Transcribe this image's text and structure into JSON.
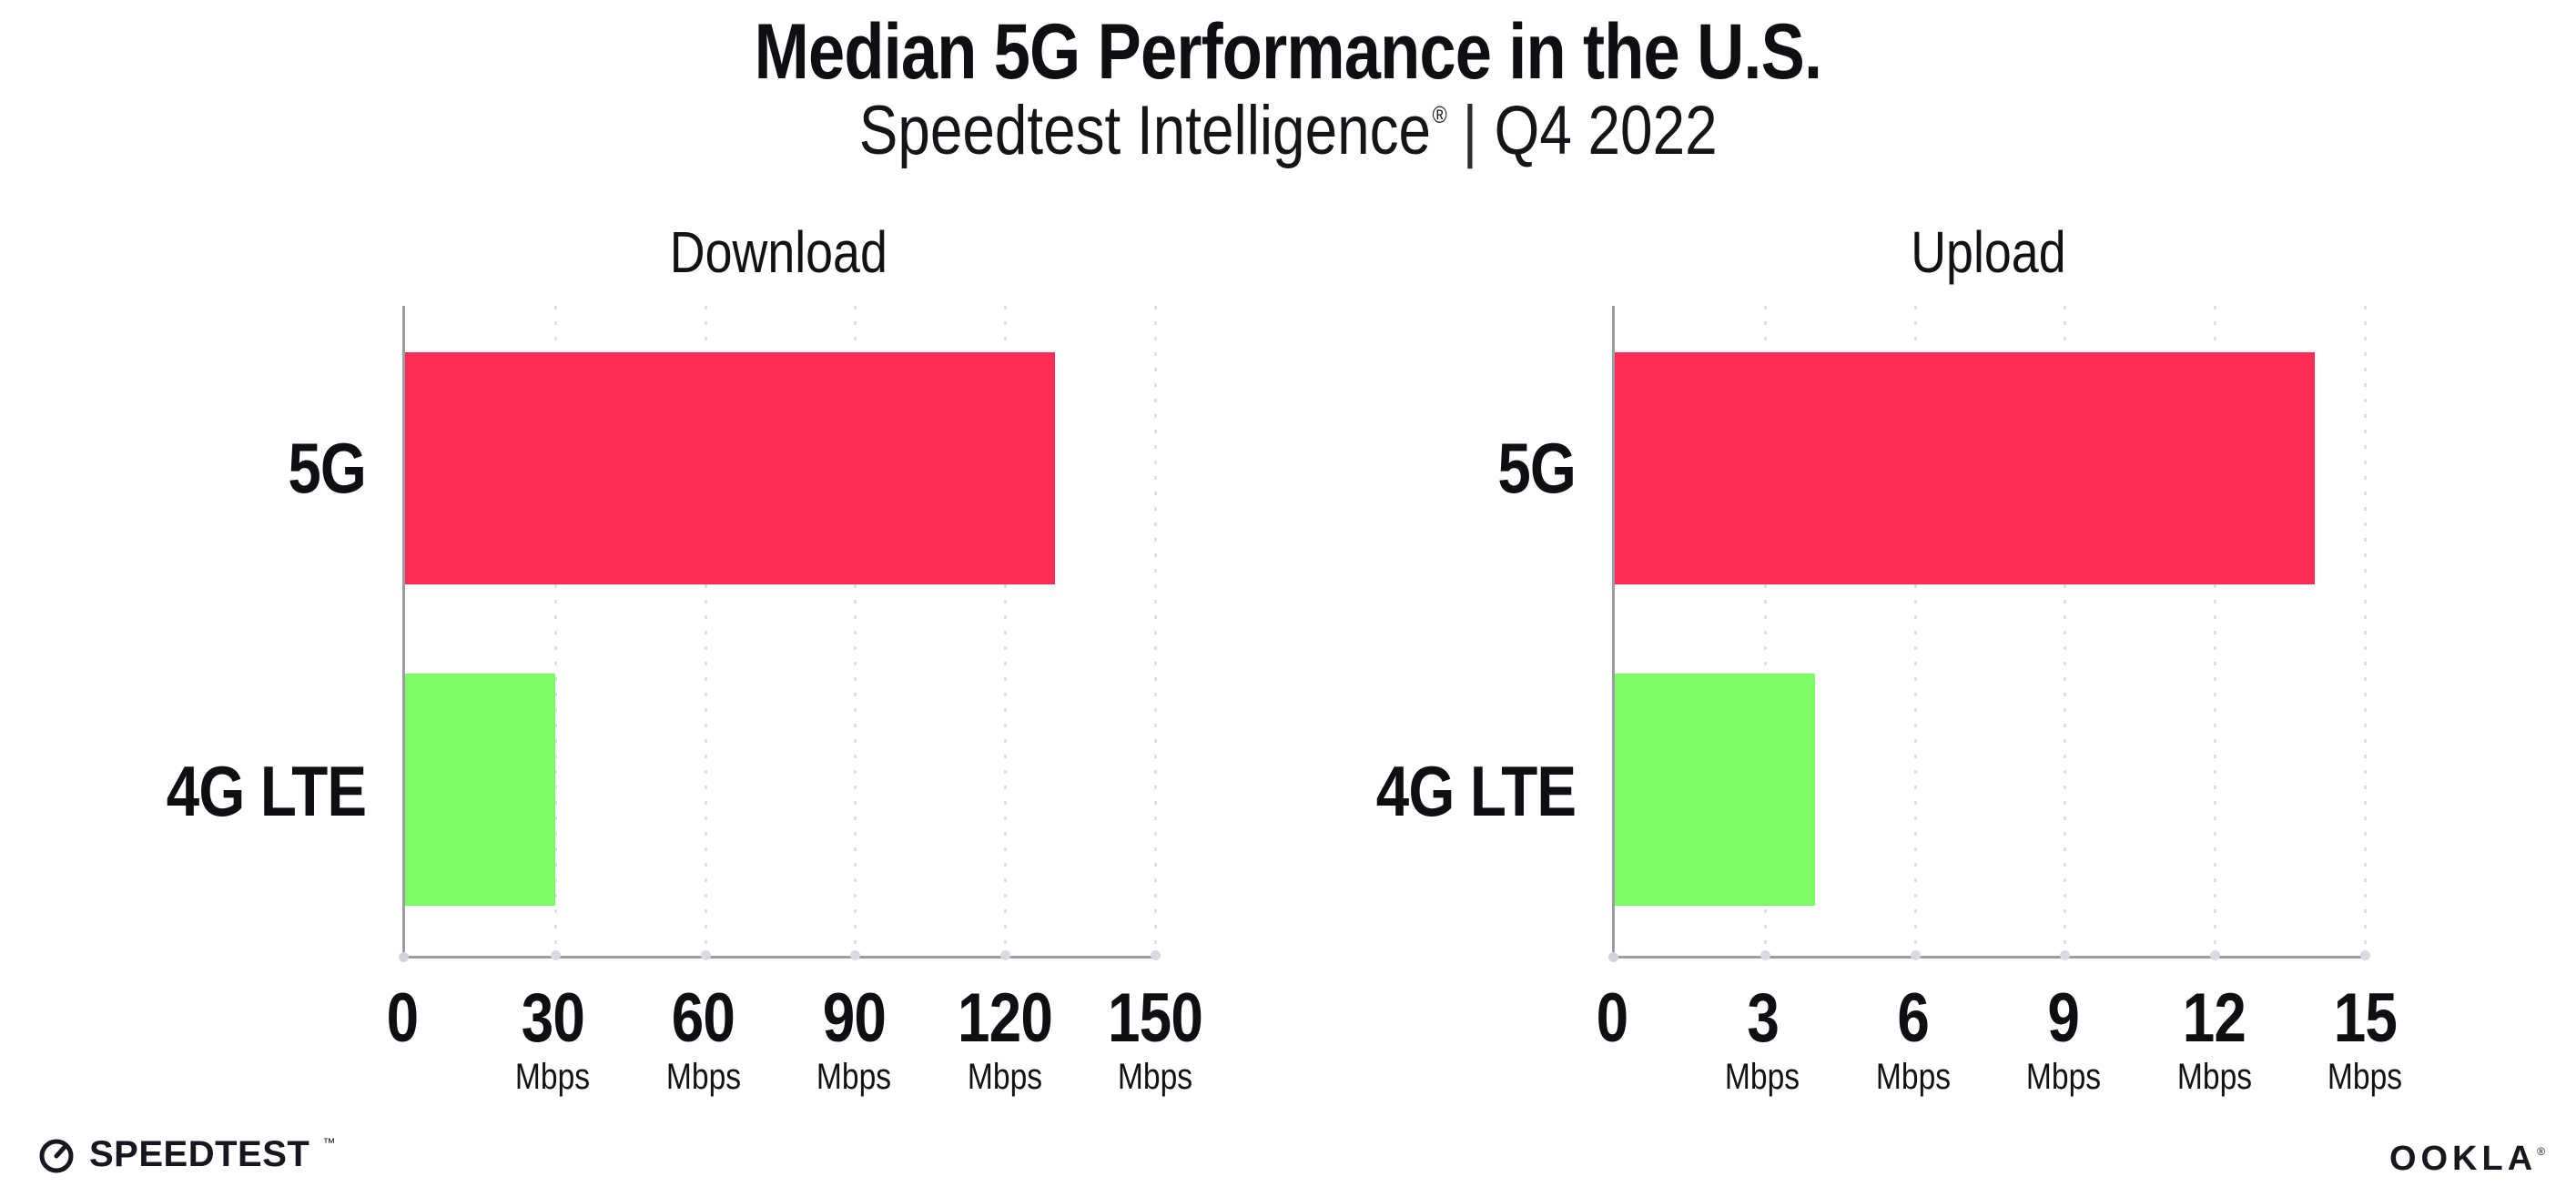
{
  "header": {
    "title": "Median 5G Performance in the U.S.",
    "subtitle": {
      "brand": "Speedtest Intelligence",
      "registered_mark": "®",
      "divider": "|",
      "period": "Q4 2022"
    }
  },
  "chart_data": [
    {
      "type": "bar",
      "orientation": "horizontal",
      "title": "Download",
      "categories": [
        "5G",
        "4G LTE"
      ],
      "values": [
        130,
        30
      ],
      "unit": "Mbps",
      "xlim": [
        0,
        150
      ],
      "xticks": [
        0,
        30,
        60,
        90,
        120,
        150
      ],
      "xtick_unit": "Mbps",
      "series_colors": [
        "#ff2d55",
        "#7dfc64"
      ],
      "grid": "dotted-vertical",
      "legend": "none"
    },
    {
      "type": "bar",
      "orientation": "horizontal",
      "title": "Upload",
      "categories": [
        "5G",
        "4G LTE"
      ],
      "values": [
        14,
        4
      ],
      "unit": "Mbps",
      "xlim": [
        0,
        15
      ],
      "xticks": [
        0,
        3,
        6,
        9,
        12,
        15
      ],
      "xtick_unit": "Mbps",
      "series_colors": [
        "#ff2d55",
        "#7dfc64"
      ],
      "grid": "dotted-vertical",
      "legend": "none"
    }
  ],
  "footer": {
    "speedtest_logo_text": "SPEEDTEST",
    "speedtest_trademark": "™",
    "ookla_logo_text": "OOKLA",
    "ookla_trademark": "®"
  },
  "colors": {
    "bar_5g": "#ff2d55",
    "bar_4g_lte": "#7dfc64",
    "axis": "#9c9ca3",
    "gridline": "#dfdfe9",
    "text": "#0f0f13"
  }
}
